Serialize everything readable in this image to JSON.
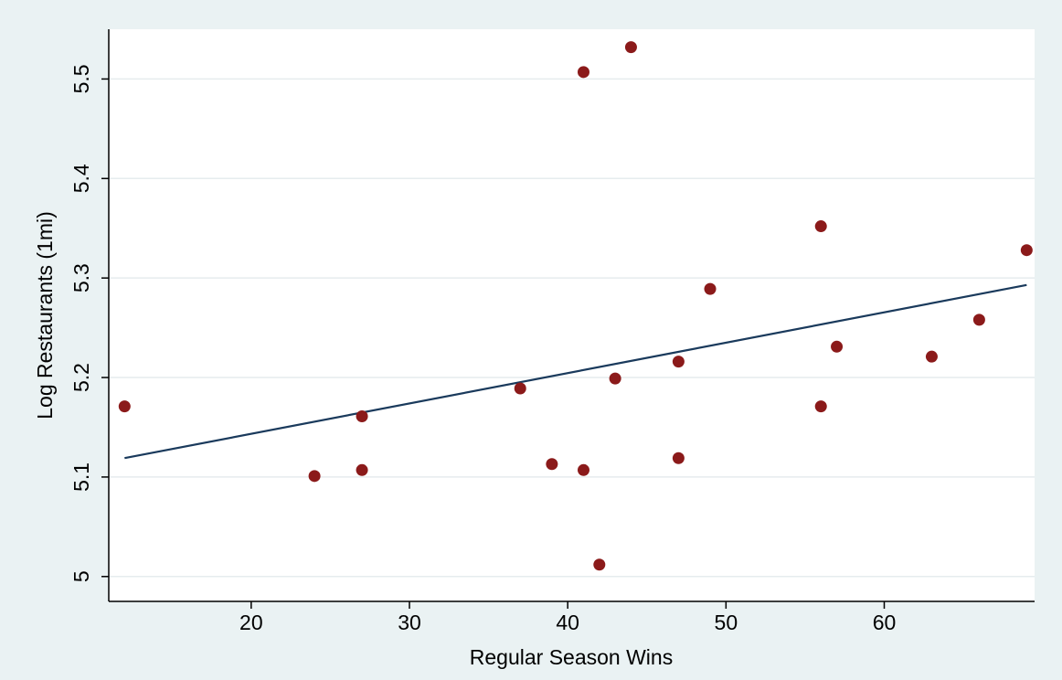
{
  "chart_data": {
    "type": "scatter",
    "xlabel": "Regular Season Wins",
    "ylabel": "Log Restaurants (1mi)",
    "xlim": [
      11,
      69.5
    ],
    "ylim": [
      4.975,
      5.55
    ],
    "x_ticks": [
      "20",
      "30",
      "40",
      "50",
      "60"
    ],
    "x_tick_values": [
      20,
      30,
      40,
      50,
      60
    ],
    "y_ticks": [
      "5",
      "5.1",
      "5.2",
      "5.3",
      "5.4",
      "5.5"
    ],
    "y_tick_values": [
      5,
      5.1,
      5.2,
      5.3,
      5.4,
      5.5
    ],
    "grid": true,
    "series": [
      {
        "type": "scatter",
        "color": "#8b1a1a",
        "points": [
          {
            "x": 12,
            "y": 5.171
          },
          {
            "x": 24,
            "y": 5.101
          },
          {
            "x": 27,
            "y": 5.161
          },
          {
            "x": 27,
            "y": 5.107
          },
          {
            "x": 37,
            "y": 5.189
          },
          {
            "x": 39,
            "y": 5.113
          },
          {
            "x": 41,
            "y": 5.507
          },
          {
            "x": 41,
            "y": 5.107
          },
          {
            "x": 42,
            "y": 5.012
          },
          {
            "x": 43,
            "y": 5.199
          },
          {
            "x": 44,
            "y": 5.532
          },
          {
            "x": 47,
            "y": 5.216
          },
          {
            "x": 47,
            "y": 5.119
          },
          {
            "x": 49,
            "y": 5.289
          },
          {
            "x": 56,
            "y": 5.352
          },
          {
            "x": 56,
            "y": 5.171
          },
          {
            "x": 57,
            "y": 5.231
          },
          {
            "x": 63,
            "y": 5.221
          },
          {
            "x": 66,
            "y": 5.258
          },
          {
            "x": 69,
            "y": 5.328
          }
        ]
      },
      {
        "type": "line",
        "color": "#1a3a5c",
        "points": [
          {
            "x": 12,
            "y": 5.119
          },
          {
            "x": 69,
            "y": 5.293
          }
        ]
      }
    ]
  }
}
